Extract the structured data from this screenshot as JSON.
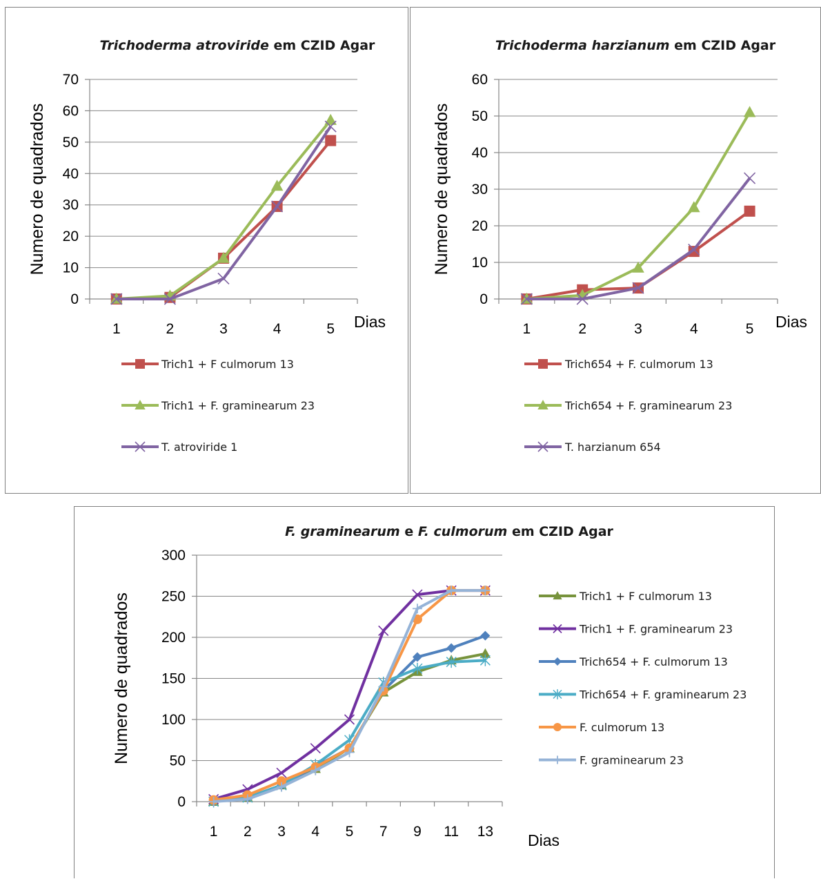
{
  "chart_data": [
    {
      "type": "line",
      "title_parts": [
        {
          "text": "Trichoderma atroviride",
          "italic": true
        },
        {
          "text": " em CZID Agar",
          "italic": false
        }
      ],
      "xlabel": "Dias",
      "ylabel": "Numero de quadrados",
      "categories": [
        "1",
        "2",
        "3",
        "4",
        "5"
      ],
      "ylim": [
        0,
        70
      ],
      "ytick_step": 10,
      "grid": true,
      "legend_position": "bottom",
      "series": [
        {
          "name": "Trich1 + F culmorum 13",
          "values": [
            0,
            0.5,
            13,
            29.5,
            50.5
          ],
          "color": "#c0504d",
          "marker": "square"
        },
        {
          "name": "Trich1 + F. graminearum 23",
          "values": [
            0,
            1,
            13,
            36,
            57
          ],
          "color": "#9bbb59",
          "marker": "triangle"
        },
        {
          "name": "T. atroviride 1",
          "values": [
            0,
            0,
            6.5,
            29.5,
            55
          ],
          "color": "#8064a2",
          "marker": "x"
        }
      ]
    },
    {
      "type": "line",
      "title_parts": [
        {
          "text": "Trichoderma harzianum",
          "italic": true
        },
        {
          "text": " em CZID Agar",
          "italic": false
        }
      ],
      "xlabel": "Dias",
      "ylabel": "Numero de quadrados",
      "categories": [
        "1",
        "2",
        "3",
        "4",
        "5"
      ],
      "ylim": [
        0,
        60
      ],
      "ytick_step": 10,
      "grid": true,
      "legend_position": "bottom",
      "series": [
        {
          "name": "Trich654 + F. culmorum 13",
          "values": [
            0,
            2.5,
            3,
            13,
            24
          ],
          "color": "#c0504d",
          "marker": "square"
        },
        {
          "name": "Trich654 + F. graminearum 23",
          "values": [
            0,
            1,
            8.5,
            25,
            51
          ],
          "color": "#9bbb59",
          "marker": "triangle"
        },
        {
          "name": "T. harzianum 654",
          "values": [
            0,
            0,
            3,
            13.5,
            33
          ],
          "color": "#8064a2",
          "marker": "x"
        }
      ]
    },
    {
      "type": "line",
      "title_parts": [
        {
          "text": "F. graminearum",
          "italic": true
        },
        {
          "text": " e ",
          "italic": false
        },
        {
          "text": "F. culmorum",
          "italic": true
        },
        {
          "text": " em CZID Agar",
          "italic": false
        }
      ],
      "xlabel": "Dias",
      "ylabel": "Numero de quadrados",
      "categories": [
        "1",
        "2",
        "3",
        "4",
        "5",
        "7",
        "9",
        "11",
        "13"
      ],
      "ylim": [
        0,
        300
      ],
      "ytick_step": 50,
      "grid": true,
      "legend_position": "right",
      "series": [
        {
          "name": "Trich1 + F culmorum 13",
          "values": [
            0,
            5,
            20,
            40,
            65,
            133,
            158,
            172,
            180
          ],
          "color": "#77933c",
          "marker": "triangle"
        },
        {
          "name": "Trich1 + F. graminearum 23",
          "values": [
            3,
            15,
            35,
            65,
            100,
            208,
            252,
            257,
            257
          ],
          "color": "#7030a0",
          "marker": "x"
        },
        {
          "name": "Trich654 + F. culmorum 13",
          "values": [
            0,
            5,
            20,
            43,
            65,
            135,
            176,
            187,
            202
          ],
          "color": "#4f81bd",
          "marker": "diamond"
        },
        {
          "name": "Trich654 + F. graminearum 23",
          "values": [
            0,
            5,
            20,
            45,
            75,
            145,
            162,
            170,
            172
          ],
          "color": "#4bacc6",
          "marker": "star"
        },
        {
          "name": "F. culmorum 13",
          "values": [
            2,
            8,
            25,
            42,
            65,
            135,
            222,
            257,
            257
          ],
          "color": "#f79646",
          "marker": "circle"
        },
        {
          "name": "F. graminearum 23",
          "values": [
            0,
            3,
            18,
            38,
            60,
            140,
            235,
            257,
            257
          ],
          "color": "#95b3d7",
          "marker": "plus"
        }
      ]
    }
  ]
}
